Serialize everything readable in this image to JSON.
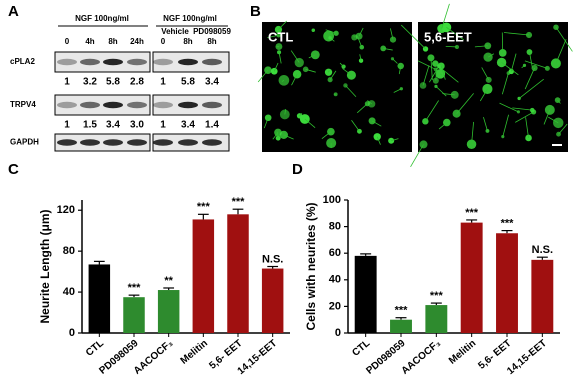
{
  "panel_a": {
    "label": "A",
    "left_group": {
      "header": "NGF 100ng/ml",
      "lanes": [
        "0",
        "4h",
        "8h",
        "24h"
      ]
    },
    "right_group": {
      "header": "NGF 100ng/ml",
      "conditions": [
        "Vehicle",
        "PD098059"
      ],
      "lanes": [
        "0",
        "8h",
        "8h"
      ]
    },
    "rows": [
      {
        "name": "cPLA2",
        "left": [
          "1",
          "3.2",
          "5.8",
          "2.8"
        ],
        "right": [
          "1",
          "5.8",
          "3.4"
        ]
      },
      {
        "name": "TRPV4",
        "left": [
          "1",
          "1.5",
          "3.4",
          "3.0"
        ],
        "right": [
          "1",
          "3.4",
          "1.4"
        ]
      },
      {
        "name": "GAPDH"
      }
    ]
  },
  "panel_b": {
    "label": "B",
    "images": [
      "CTL",
      "5,6-EET"
    ]
  },
  "chart_data": [
    {
      "type": "bar",
      "panel_label": "C",
      "ylabel": "Neurite Length (μm)",
      "categories": [
        "CTL",
        "PD098059",
        "AACOCF₃",
        "Melitin",
        "5,6- EET",
        "14,15-EET"
      ],
      "values": [
        67,
        35,
        42,
        111,
        116,
        63
      ],
      "errors": [
        3,
        2,
        2,
        5,
        5,
        2
      ],
      "colors": [
        "#000000",
        "#2e8b2e",
        "#2e8b2e",
        "#a01010",
        "#a01010",
        "#a01010"
      ],
      "annotations": [
        null,
        "***",
        "**",
        "***",
        "***",
        "N.S."
      ],
      "ylim": [
        0,
        130
      ],
      "yticks": [
        0,
        40,
        80,
        120
      ]
    },
    {
      "type": "bar",
      "panel_label": "D",
      "ylabel": "Cells with neurites (%)",
      "categories": [
        "CTL",
        "PD098059",
        "AACOCF₃",
        "Melitin",
        "5,6- EET",
        "14,15-EET"
      ],
      "values": [
        58,
        10,
        21,
        83,
        75,
        55
      ],
      "errors": [
        1.5,
        1.5,
        1.5,
        2,
        2,
        2
      ],
      "colors": [
        "#000000",
        "#2e8b2e",
        "#2e8b2e",
        "#a01010",
        "#a01010",
        "#a01010"
      ],
      "annotations": [
        null,
        "***",
        "***",
        "***",
        "***",
        "N.S."
      ],
      "ylim": [
        0,
        100
      ],
      "yticks": [
        0,
        20,
        40,
        60,
        80,
        100
      ]
    }
  ]
}
